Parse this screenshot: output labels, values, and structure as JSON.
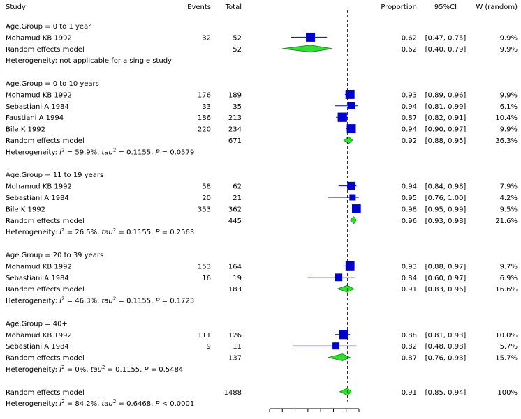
{
  "columns": {
    "study": "Study",
    "events": "Events",
    "total": "Total",
    "proportion": "Proportion",
    "ci": "95%CI",
    "weight": "W (random)"
  },
  "colors": {
    "square": "#0000cc",
    "diamond": "#33dd33",
    "diamond_stroke": "#118811",
    "line": "#000000"
  },
  "chart_data": {
    "type": "forest",
    "xlim": [
      0.3,
      1.0
    ],
    "null_line": 0.91,
    "groups": [
      {
        "label": "Age.Group = 0 to 1 year",
        "studies": [
          {
            "study": "Mohamud KB 1992",
            "events": "32",
            "total": "52",
            "proportion": 0.62,
            "ci_low": 0.47,
            "ci_high": 0.75,
            "proportion_text": "0.62",
            "ci_text": "[0.47, 0.75]",
            "weight_text": "9.9%",
            "weight": 9.9
          }
        ],
        "random": {
          "label": "Random effects model",
          "total": "52",
          "proportion": 0.62,
          "ci_low": 0.4,
          "ci_high": 0.79,
          "proportion_text": "0.62",
          "ci_text": "[0.40, 0.79]",
          "weight_text": "9.9%"
        },
        "heterogeneity": {
          "prefix": "Heterogeneity: not applicable for a single study",
          "i2": "",
          "tau2": "",
          "p": ""
        }
      },
      {
        "label": "Age.Group = 0 to 10 years",
        "studies": [
          {
            "study": "Mohamud KB 1992",
            "events": "176",
            "total": "189",
            "proportion": 0.93,
            "ci_low": 0.89,
            "ci_high": 0.96,
            "proportion_text": "0.93",
            "ci_text": "[0.89, 0.96]",
            "weight_text": "9.9%",
            "weight": 9.9
          },
          {
            "study": "Sebastiani A 1984",
            "events": "33",
            "total": "35",
            "proportion": 0.94,
            "ci_low": 0.81,
            "ci_high": 0.99,
            "proportion_text": "0.94",
            "ci_text": "[0.81, 0.99]",
            "weight_text": "6.1%",
            "weight": 6.1
          },
          {
            "study": "Faustiani A 1994",
            "events": "186",
            "total": "213",
            "proportion": 0.87,
            "ci_low": 0.82,
            "ci_high": 0.91,
            "proportion_text": "0.87",
            "ci_text": "[0.82, 0.91]",
            "weight_text": "10.4%",
            "weight": 10.4
          },
          {
            "study": "Bile K 1992",
            "events": "220",
            "total": "234",
            "proportion": 0.94,
            "ci_low": 0.9,
            "ci_high": 0.97,
            "proportion_text": "0.94",
            "ci_text": "[0.90, 0.97]",
            "weight_text": "9.9%",
            "weight": 9.9
          }
        ],
        "random": {
          "label": "Random effects model",
          "total": "671",
          "proportion": 0.92,
          "ci_low": 0.88,
          "ci_high": 0.95,
          "proportion_text": "0.92",
          "ci_text": "[0.88, 0.95]",
          "weight_text": "36.3%"
        },
        "heterogeneity": {
          "prefix": "Heterogeneity: ",
          "i2": "59.9%",
          "tau2": "0.1155",
          "p": "0.0579",
          "p_op": "="
        }
      },
      {
        "label": "Age.Group = 11 to 19 years",
        "studies": [
          {
            "study": "Mohamud KB 1992",
            "events": "58",
            "total": "62",
            "proportion": 0.94,
            "ci_low": 0.84,
            "ci_high": 0.98,
            "proportion_text": "0.94",
            "ci_text": "[0.84, 0.98]",
            "weight_text": "7.9%",
            "weight": 7.9
          },
          {
            "study": "Sebastiani A 1984",
            "events": "20",
            "total": "21",
            "proportion": 0.95,
            "ci_low": 0.76,
            "ci_high": 1.0,
            "proportion_text": "0.95",
            "ci_text": "[0.76, 1.00]",
            "weight_text": "4.2%",
            "weight": 4.2
          },
          {
            "study": "Bile K 1992",
            "events": "353",
            "total": "362",
            "proportion": 0.98,
            "ci_low": 0.95,
            "ci_high": 0.99,
            "proportion_text": "0.98",
            "ci_text": "[0.95, 0.99]",
            "weight_text": "9.5%",
            "weight": 9.5
          }
        ],
        "random": {
          "label": "Random effects model",
          "total": "445",
          "proportion": 0.96,
          "ci_low": 0.93,
          "ci_high": 0.98,
          "proportion_text": "0.96",
          "ci_text": "[0.93, 0.98]",
          "weight_text": "21.6%"
        },
        "heterogeneity": {
          "prefix": "Heterogeneity: ",
          "i2": "26.5%",
          "tau2": "0.1155",
          "p": "0.2563",
          "p_op": "="
        }
      },
      {
        "label": "Age.Group = 20 to 39 years",
        "studies": [
          {
            "study": "Mohamud KB 1992",
            "events": "153",
            "total": "164",
            "proportion": 0.93,
            "ci_low": 0.88,
            "ci_high": 0.97,
            "proportion_text": "0.93",
            "ci_text": "[0.88, 0.97]",
            "weight_text": "9.7%",
            "weight": 9.7
          },
          {
            "study": "Sebastiani A 1984",
            "events": "16",
            "total": "19",
            "proportion": 0.84,
            "ci_low": 0.6,
            "ci_high": 0.97,
            "proportion_text": "0.84",
            "ci_text": "[0.60, 0.97]",
            "weight_text": "6.9%",
            "weight": 6.9
          }
        ],
        "random": {
          "label": "Random effects model",
          "total": "183",
          "proportion": 0.91,
          "ci_low": 0.83,
          "ci_high": 0.96,
          "proportion_text": "0.91",
          "ci_text": "[0.83, 0.96]",
          "weight_text": "16.6%"
        },
        "heterogeneity": {
          "prefix": "Heterogeneity: ",
          "i2": "46.3%",
          "tau2": "0.1155",
          "p": "0.1723",
          "p_op": "="
        }
      },
      {
        "label": "Age.Group = 40+",
        "studies": [
          {
            "study": "Mohamud KB 1992",
            "events": "111",
            "total": "126",
            "proportion": 0.88,
            "ci_low": 0.81,
            "ci_high": 0.93,
            "proportion_text": "0.88",
            "ci_text": "[0.81, 0.93]",
            "weight_text": "10.0%",
            "weight": 10.0
          },
          {
            "study": "Sebastiani A 1984",
            "events": "9",
            "total": "11",
            "proportion": 0.82,
            "ci_low": 0.48,
            "ci_high": 0.98,
            "proportion_text": "0.82",
            "ci_text": "[0.48, 0.98]",
            "weight_text": "5.7%",
            "weight": 5.7
          }
        ],
        "random": {
          "label": "Random effects model",
          "total": "137",
          "proportion": 0.87,
          "ci_low": 0.76,
          "ci_high": 0.93,
          "proportion_text": "0.87",
          "ci_text": "[0.76, 0.93]",
          "weight_text": "15.7%"
        },
        "heterogeneity": {
          "prefix": "Heterogeneity: ",
          "i2": "0%",
          "tau2": "0.1155",
          "p": "0.5484",
          "p_op": "="
        }
      }
    ],
    "overall": {
      "label": "Random effects model",
      "total": "1488",
      "proportion": 0.91,
      "ci_low": 0.85,
      "ci_high": 0.94,
      "proportion_text": "0.91",
      "ci_text": "[0.85, 0.94]",
      "weight_text": "100%",
      "heterogeneity": {
        "prefix": "Heterogeneity: ",
        "i2": "84.2%",
        "tau2": "0.6468",
        "p": "0.0001",
        "p_op": "<"
      }
    },
    "x_ticks": [
      0.3,
      0.4,
      0.5,
      0.6,
      0.7,
      0.8,
      0.9,
      1.0
    ]
  }
}
